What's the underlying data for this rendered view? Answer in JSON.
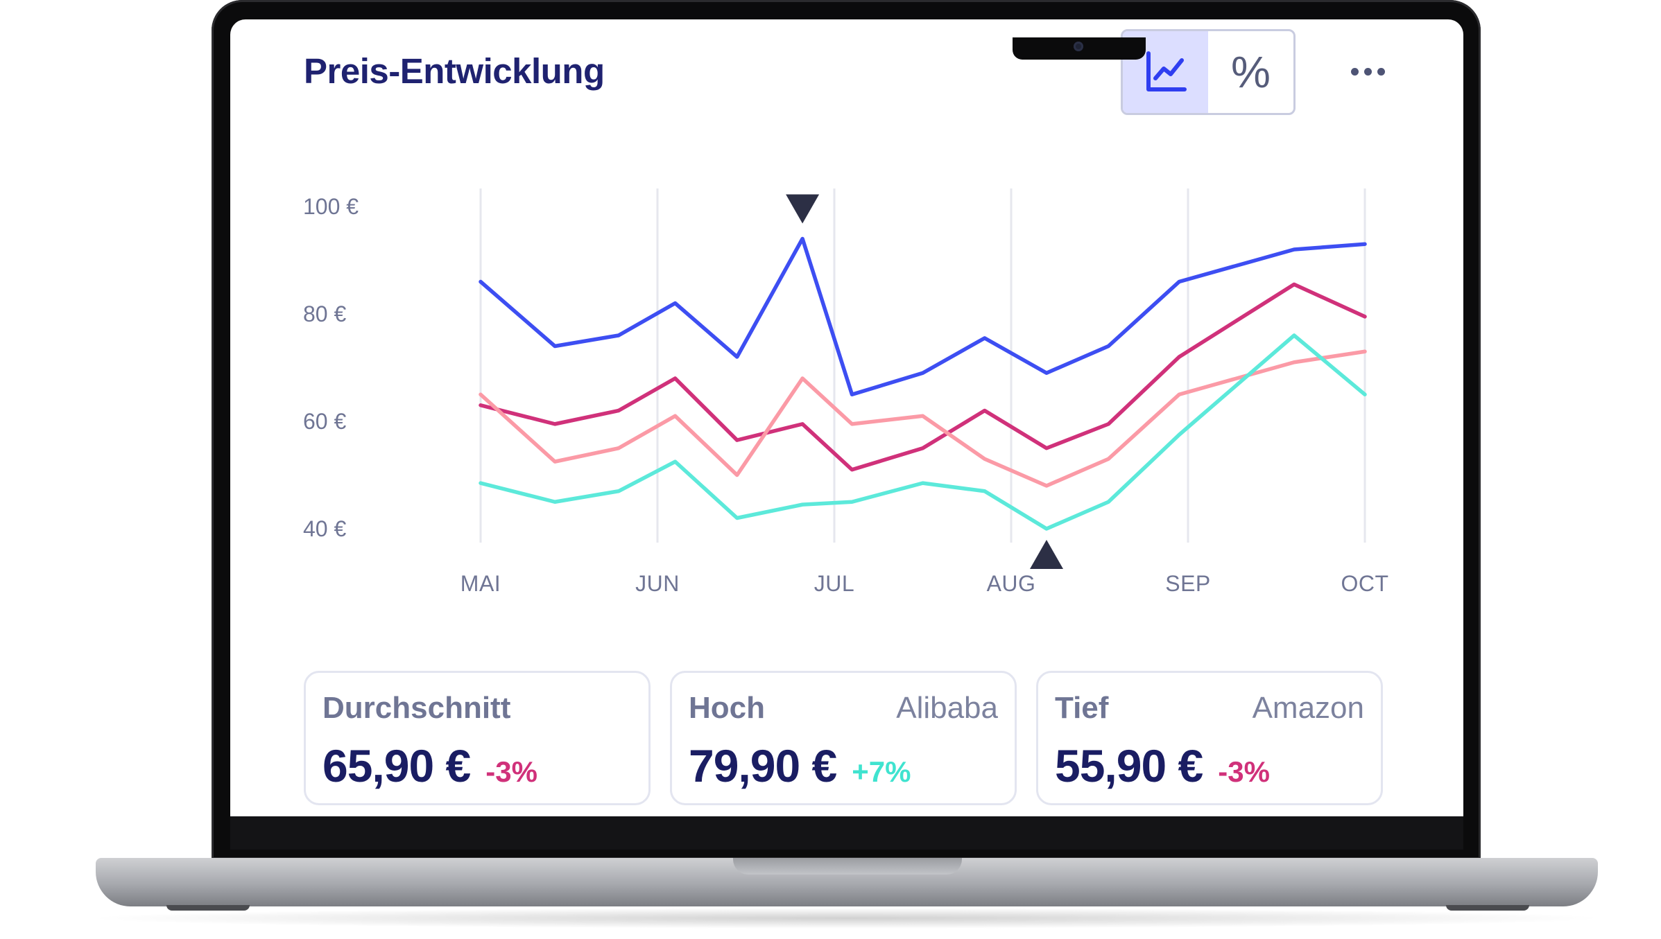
{
  "widget": {
    "title": "Preis-Entwicklung",
    "toggle": [
      {
        "icon": "line-chart-icon",
        "active": true
      },
      {
        "label": "%",
        "active": false
      }
    ],
    "more_icon": "more-horizontal-icon"
  },
  "chart_data": {
    "type": "line",
    "x_categories": [
      "MAI",
      "JUN",
      "JUL",
      "AUG",
      "SEP",
      "OCT"
    ],
    "y_tick_labels": [
      "100 €",
      "80 €",
      "60 €",
      "40 €"
    ],
    "y_ticks": [
      100,
      80,
      60,
      40
    ],
    "ylim": [
      36,
      103
    ],
    "x_points": [
      0,
      0.42,
      0.78,
      1.1,
      1.45,
      1.82,
      2.1,
      2.5,
      2.85,
      3.2,
      3.55,
      3.95,
      4.6,
      5.0
    ],
    "series": [
      {
        "color": "#3d4ef2",
        "values": [
          86,
          74,
          76,
          82,
          72,
          94,
          65,
          69,
          75.5,
          69,
          74,
          86,
          92,
          93
        ]
      },
      {
        "color": "#d0317a",
        "values": [
          63,
          59.5,
          62,
          68,
          56.5,
          59.5,
          51,
          55,
          62,
          55,
          59.5,
          72,
          85.5,
          79.5
        ]
      },
      {
        "color": "#fb9aa6",
        "values": [
          65,
          52.5,
          55,
          61,
          50,
          68,
          59.5,
          61,
          53,
          48,
          53,
          65,
          71,
          73
        ]
      },
      {
        "color": "#5ce9da",
        "values": [
          48.5,
          45,
          47,
          52.5,
          42,
          44.5,
          45,
          48.5,
          47,
          40,
          45,
          57.5,
          76,
          65
        ]
      }
    ],
    "markers": [
      {
        "type": "high",
        "x_point": 1.82,
        "direction": "down"
      },
      {
        "type": "low",
        "x_point": 3.2,
        "direction": "up"
      }
    ],
    "gridlines": "vertical"
  },
  "stats": [
    {
      "label": "Durchschnitt",
      "source": "",
      "value": "65,90 €",
      "delta": "-3%",
      "delta_color": "#d0317a"
    },
    {
      "label": "Hoch",
      "source": "Alibaba",
      "value": "79,90 €",
      "delta": "+7%",
      "delta_color": "#3fe3cf"
    },
    {
      "label": "Tief",
      "source": "Amazon",
      "value": "55,90 €",
      "delta": "-3%",
      "delta_color": "#d0317a"
    }
  ]
}
